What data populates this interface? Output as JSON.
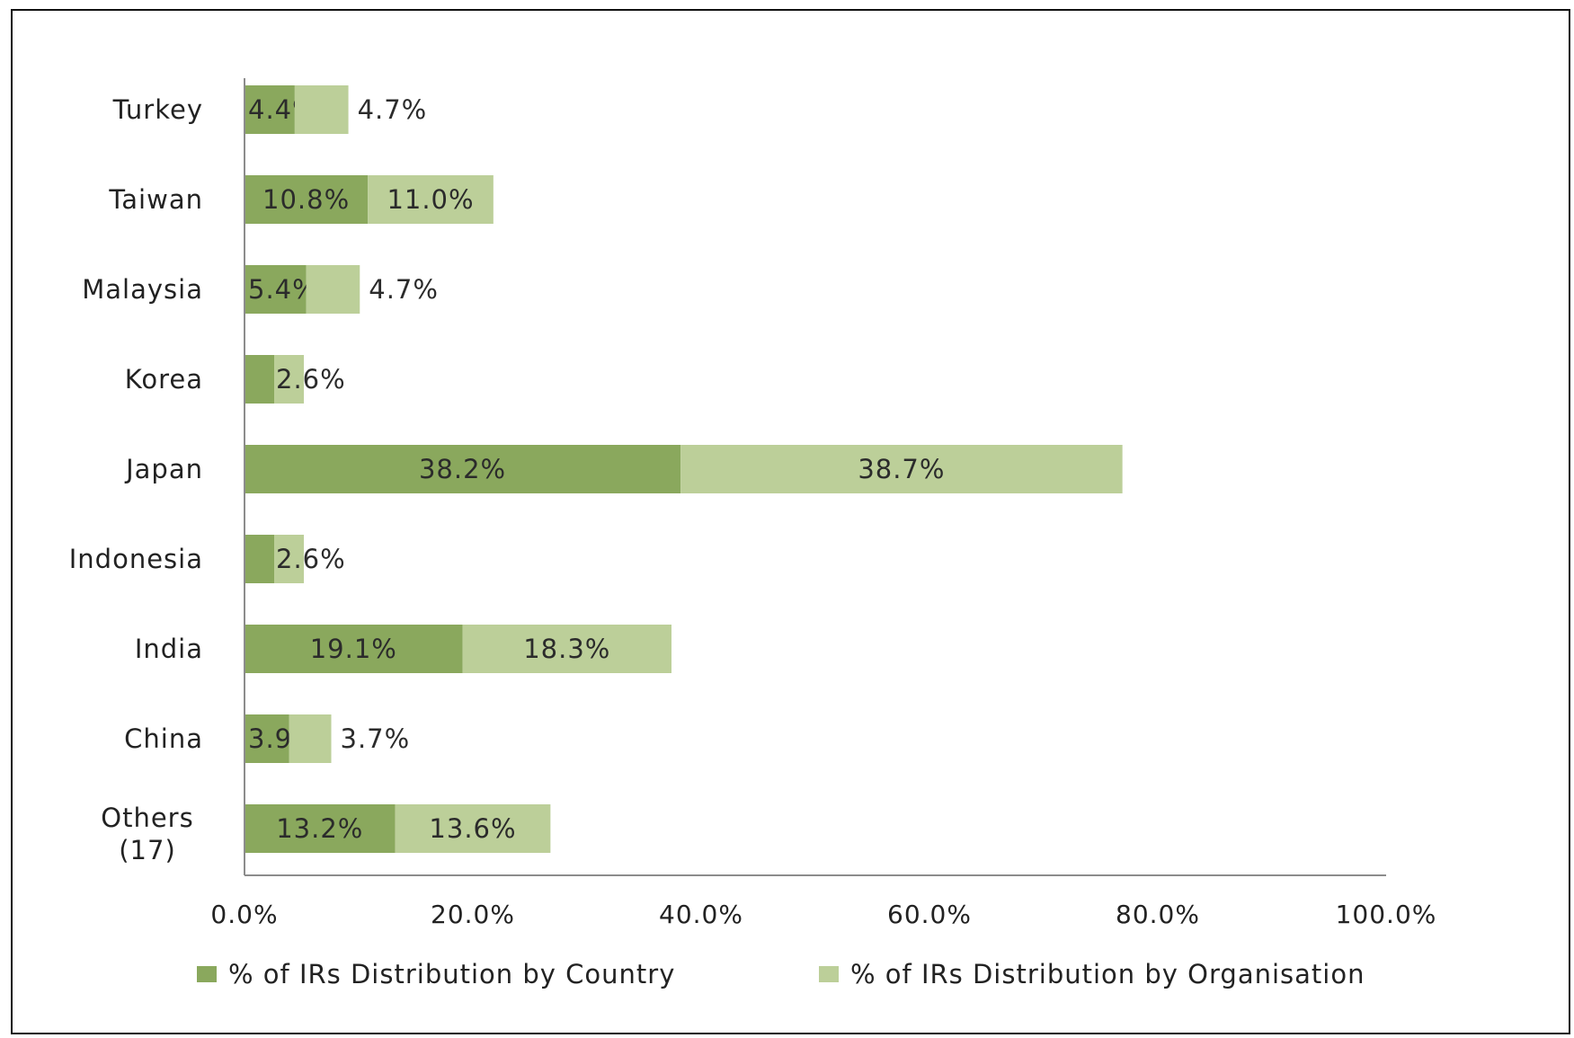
{
  "colors": {
    "country": "#8aa85d",
    "organisation": "#bccf99",
    "axis": "#8c8c8c"
  },
  "chart_data": {
    "type": "bar",
    "orientation": "horizontal",
    "stacked": true,
    "categories": [
      "Turkey",
      "Taiwan",
      "Malaysia",
      "Korea",
      "Japan",
      "Indonesia",
      "India",
      "China",
      "Others (17)"
    ],
    "series": [
      {
        "name": "% of IRs Distribution by Country",
        "values": [
          4.4,
          10.8,
          5.4,
          2.6,
          38.2,
          2.6,
          19.1,
          3.9,
          13.2
        ]
      },
      {
        "name": "% of IRs Distribution by Organisation",
        "values": [
          4.7,
          11.0,
          4.7,
          2.6,
          38.7,
          2.6,
          18.3,
          3.7,
          13.6
        ]
      }
    ],
    "data_labels": [
      [
        "4.4%",
        "4.7%"
      ],
      [
        "10.8%",
        "11.0%"
      ],
      [
        "5.4%",
        "4.7%"
      ],
      [
        "",
        "2.6%"
      ],
      [
        "38.2%",
        "38.7%"
      ],
      [
        "",
        "2.6%"
      ],
      [
        "19.1%",
        "18.3%"
      ],
      [
        "3.9%",
        "3.7%"
      ],
      [
        "13.2%",
        "13.6%"
      ]
    ],
    "x_ticks": [
      "0.0%",
      "20.0%",
      "40.0%",
      "60.0%",
      "80.0%",
      "100.0%"
    ],
    "xlim": [
      0,
      100
    ],
    "title": "",
    "xlabel": "",
    "ylabel": "",
    "grid": false,
    "legend_position": "bottom"
  }
}
